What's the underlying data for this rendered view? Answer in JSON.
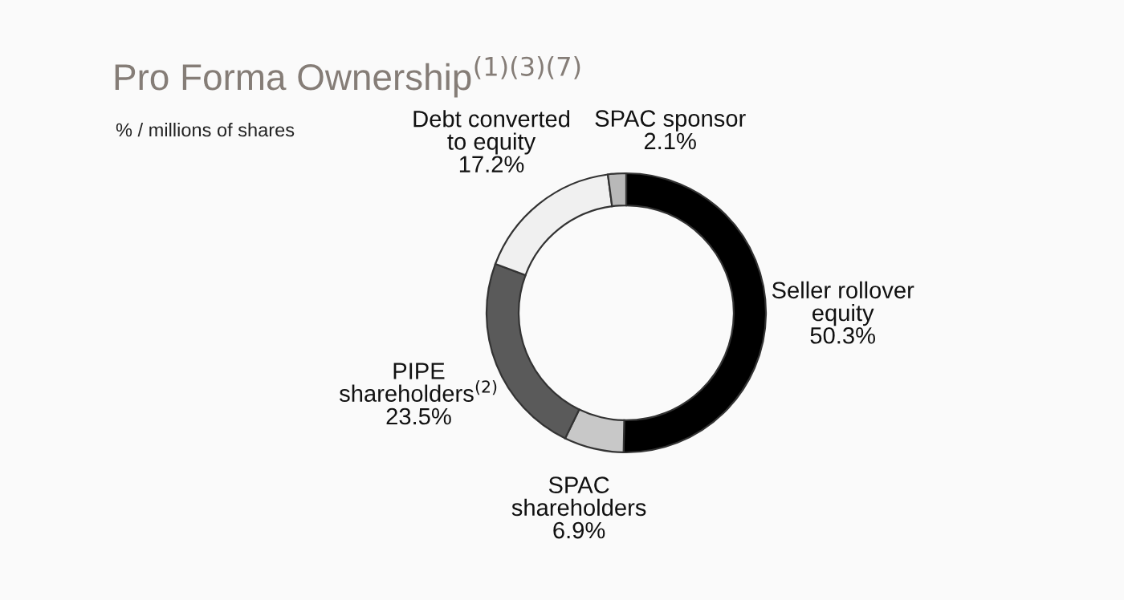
{
  "chart_data": {
    "type": "donut",
    "title": "Pro Forma Ownership$^{(1)(3)(7)}$",
    "subtitle": "% / millions of shares",
    "categories": [
      "Seller rollover\nequity",
      "SPAC\nshareholders",
      "PIPE\nshareholders$^{(2)}$",
      "Debt converted\nto equity",
      "SPAC sponsor"
    ],
    "values": [
      50.3,
      6.9,
      23.5,
      17.2,
      2.1
    ],
    "value_labels": [
      "50.3%",
      "6.9%",
      "23.5%",
      "17.2%",
      "2.1%"
    ],
    "colors": [
      "#000000",
      "#c8c8c8",
      "#5a5a5a",
      "#f0f0f0",
      "#b8b8b8"
    ],
    "legend": false
  }
}
